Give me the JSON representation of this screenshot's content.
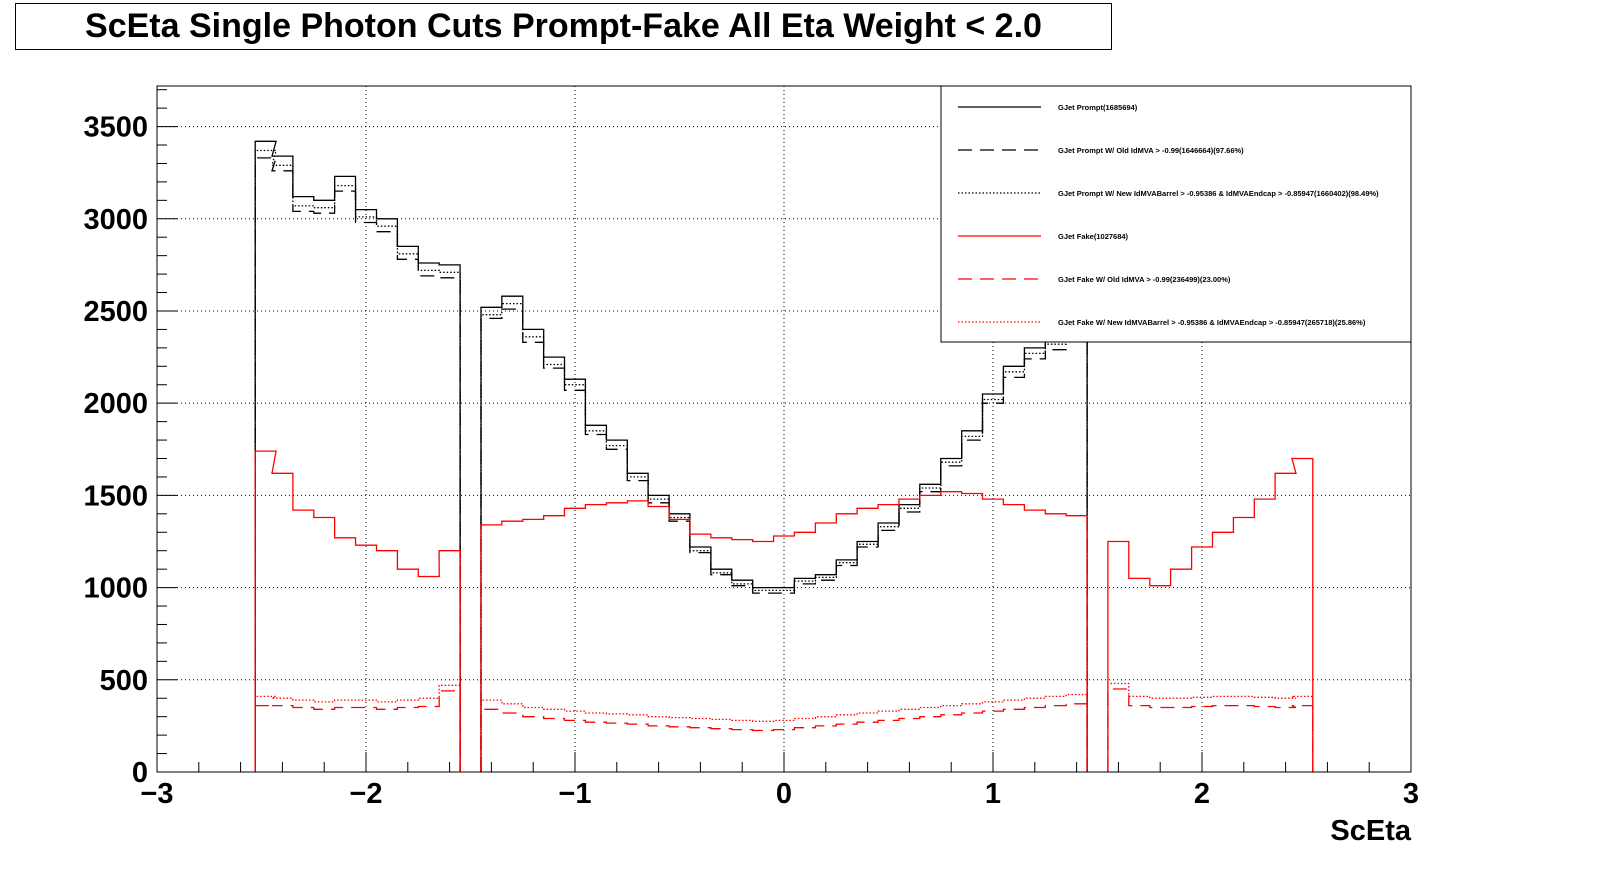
{
  "chart_data": {
    "type": "line",
    "title": "ScEta Single Photon Cuts Prompt-Fake All Eta Weight < 2.0",
    "xlabel": "ScEta",
    "ylabel": "",
    "xlim": [
      -3,
      3
    ],
    "ylim": [
      0,
      3720
    ],
    "x_ticks": [
      "−3",
      "−2",
      "−1",
      "0",
      "1",
      "2",
      "3"
    ],
    "y_ticks": [
      "0",
      "500",
      "1000",
      "1500",
      "2000",
      "2500",
      "3000",
      "3500"
    ],
    "grid": true,
    "legend_position": "top-right",
    "x": [
      -2.48,
      -2.4,
      -2.3,
      -2.2,
      -2.1,
      -2.0,
      -1.9,
      -1.8,
      -1.7,
      -1.6,
      -1.5,
      -1.4,
      -1.3,
      -1.2,
      -1.1,
      -1.0,
      -0.9,
      -0.8,
      -0.7,
      -0.6,
      -0.5,
      -0.4,
      -0.3,
      -0.2,
      -0.1,
      0.0,
      0.1,
      0.2,
      0.3,
      0.4,
      0.5,
      0.6,
      0.7,
      0.8,
      0.9,
      1.0,
      1.1,
      1.2,
      1.3,
      1.4,
      1.5,
      1.6,
      1.7,
      1.8,
      1.9,
      2.0,
      2.1,
      2.2,
      2.3,
      2.4,
      2.48
    ],
    "series": [
      {
        "name": "GJet Prompt(1685694)",
        "color": "#000000",
        "dash": "solid",
        "values": [
          3420,
          3340,
          3120,
          3100,
          3230,
          3050,
          3000,
          2850,
          2760,
          2750,
          null,
          2520,
          2580,
          2400,
          2250,
          2130,
          1880,
          1800,
          1620,
          1500,
          1400,
          1220,
          1100,
          1040,
          1000,
          1000,
          1050,
          1070,
          1150,
          1250,
          1350,
          1450,
          1560,
          1700,
          1850,
          2050,
          2200,
          2300,
          2350,
          2400,
          null,
          null,
          null,
          null,
          null,
          null,
          null,
          null,
          null,
          null,
          null
        ]
      },
      {
        "name": "GJet Prompt W/ Old IdMVA > -0.99(1646664)(97.66%)",
        "color": "#000000",
        "dash": "longdash",
        "values": [
          3330,
          3260,
          3040,
          3030,
          3150,
          2980,
          2930,
          2780,
          2690,
          2680,
          null,
          2460,
          2510,
          2330,
          2190,
          2070,
          1830,
          1750,
          1580,
          1460,
          1360,
          1190,
          1070,
          1010,
          970,
          970,
          1020,
          1040,
          1120,
          1220,
          1310,
          1410,
          1520,
          1660,
          1800,
          2000,
          2140,
          2240,
          2290,
          2340,
          null,
          null,
          null,
          null,
          null,
          null,
          null,
          null,
          null,
          null,
          null
        ]
      },
      {
        "name": "GJet Prompt W/ New IdMVABarrel > -0.95386 & IdMVAEndcap > -0.85947(1660402)(98.49%)",
        "color": "#000000",
        "dash": "dotted",
        "values": [
          3370,
          3290,
          3070,
          3060,
          3180,
          3010,
          2960,
          2810,
          2720,
          2710,
          null,
          2480,
          2540,
          2360,
          2210,
          2100,
          1850,
          1770,
          1600,
          1480,
          1380,
          1200,
          1080,
          1020,
          985,
          985,
          1035,
          1055,
          1135,
          1235,
          1330,
          1430,
          1540,
          1680,
          1820,
          2020,
          2170,
          2270,
          2320,
          2370,
          null,
          null,
          null,
          null,
          null,
          null,
          null,
          null,
          null,
          null,
          null
        ]
      },
      {
        "name": "GJet Fake(1027684)",
        "color": "#ff0000",
        "dash": "solid",
        "values": [
          1740,
          1620,
          1420,
          1380,
          1270,
          1230,
          1200,
          1100,
          1060,
          1200,
          null,
          1340,
          1360,
          1370,
          1390,
          1430,
          1450,
          1460,
          1470,
          1440,
          1370,
          1290,
          1270,
          1260,
          1250,
          1280,
          1300,
          1350,
          1400,
          1430,
          1450,
          1480,
          1500,
          1520,
          1510,
          1480,
          1450,
          1420,
          1400,
          1390,
          null,
          1250,
          1050,
          1010,
          1100,
          1220,
          1300,
          1380,
          1480,
          1620,
          1700
        ]
      },
      {
        "name": "GJet Fake W/ Old IdMVA > -0.99(236499)(23.00%)",
        "color": "#ff0000",
        "dash": "longdash",
        "values": [
          360,
          360,
          350,
          340,
          350,
          350,
          340,
          350,
          355,
          440,
          null,
          340,
          320,
          300,
          290,
          280,
          270,
          265,
          260,
          250,
          245,
          240,
          235,
          230,
          225,
          230,
          240,
          250,
          260,
          270,
          280,
          290,
          300,
          310,
          320,
          330,
          340,
          350,
          360,
          370,
          null,
          450,
          360,
          350,
          350,
          355,
          360,
          360,
          355,
          350,
          360
        ]
      },
      {
        "name": "GJet Fake W/ New IdMVABarrel > -0.95386 & IdMVAEndcap > -0.85947(265718)(25.86%)",
        "color": "#ff0000",
        "dash": "dotted",
        "values": [
          410,
          400,
          390,
          380,
          390,
          390,
          380,
          390,
          400,
          470,
          null,
          390,
          370,
          350,
          340,
          330,
          320,
          315,
          310,
          300,
          295,
          290,
          285,
          280,
          275,
          280,
          290,
          300,
          310,
          320,
          330,
          340,
          350,
          360,
          370,
          380,
          390,
          400,
          410,
          420,
          null,
          480,
          410,
          400,
          400,
          405,
          410,
          410,
          405,
          400,
          410
        ]
      }
    ]
  }
}
